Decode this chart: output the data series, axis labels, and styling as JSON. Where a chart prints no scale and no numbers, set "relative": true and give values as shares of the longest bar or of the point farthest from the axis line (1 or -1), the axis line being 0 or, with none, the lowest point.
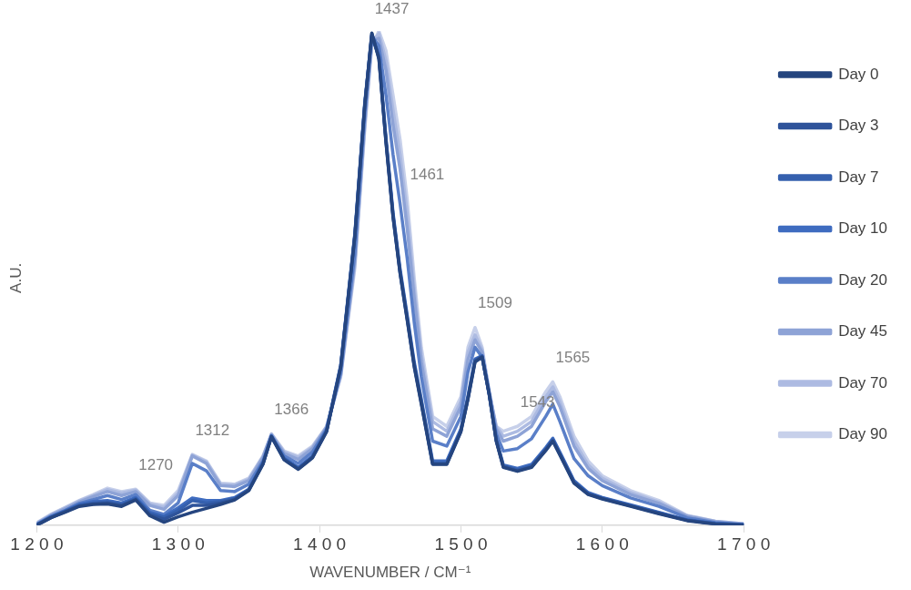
{
  "chart_data": {
    "type": "line",
    "relative": true,
    "xlabel": "WAVENUMBER / CM⁻¹",
    "ylabel": "A.U.",
    "xlim": [
      1200,
      1700
    ],
    "xticks": [
      1200,
      1300,
      1400,
      1500,
      1600,
      1700
    ],
    "grid": false,
    "legend": "right",
    "marker": "none",
    "line_style": "solid",
    "x": [
      1200,
      1210,
      1220,
      1230,
      1240,
      1250,
      1260,
      1270,
      1280,
      1290,
      1300,
      1310,
      1320,
      1330,
      1340,
      1350,
      1360,
      1366,
      1375,
      1385,
      1395,
      1405,
      1415,
      1425,
      1432,
      1437,
      1442,
      1447,
      1452,
      1457,
      1462,
      1467,
      1472,
      1480,
      1490,
      1500,
      1505,
      1510,
      1515,
      1520,
      1525,
      1530,
      1540,
      1550,
      1560,
      1565,
      1570,
      1580,
      1590,
      1600,
      1620,
      1640,
      1660,
      1680,
      1700
    ],
    "series": [
      {
        "name": "Day 0",
        "color": "#25457f",
        "values": [
          0,
          0.015,
          0.026,
          0.038,
          0.042,
          0.043,
          0.038,
          0.051,
          0.019,
          0.006,
          0.017,
          0.026,
          0.034,
          0.042,
          0.051,
          0.07,
          0.123,
          0.179,
          0.132,
          0.113,
          0.136,
          0.189,
          0.32,
          0.585,
          0.849,
          0.996,
          0.943,
          0.774,
          0.623,
          0.509,
          0.415,
          0.32,
          0.245,
          0.123,
          0.123,
          0.189,
          0.255,
          0.33,
          0.34,
          0.264,
          0.17,
          0.117,
          0.109,
          0.117,
          0.151,
          0.17,
          0.142,
          0.085,
          0.062,
          0.053,
          0.038,
          0.023,
          0.009,
          0.002,
          0
        ]
      },
      {
        "name": "Day 3",
        "color": "#2e539a",
        "values": [
          0,
          0.015,
          0.027,
          0.039,
          0.043,
          0.045,
          0.04,
          0.052,
          0.021,
          0.012,
          0.025,
          0.04,
          0.04,
          0.045,
          0.052,
          0.071,
          0.124,
          0.179,
          0.133,
          0.114,
          0.137,
          0.19,
          0.32,
          0.585,
          0.85,
          0.995,
          0.945,
          0.776,
          0.625,
          0.51,
          0.417,
          0.322,
          0.247,
          0.124,
          0.124,
          0.19,
          0.256,
          0.332,
          0.341,
          0.265,
          0.171,
          0.118,
          0.11,
          0.118,
          0.152,
          0.171,
          0.143,
          0.086,
          0.063,
          0.054,
          0.039,
          0.024,
          0.01,
          0.003,
          0
        ]
      },
      {
        "name": "Day 7",
        "color": "#3560ae",
        "values": [
          0.001,
          0.016,
          0.028,
          0.04,
          0.045,
          0.047,
          0.042,
          0.054,
          0.024,
          0.016,
          0.03,
          0.05,
          0.045,
          0.048,
          0.054,
          0.072,
          0.125,
          0.18,
          0.134,
          0.115,
          0.138,
          0.191,
          0.322,
          0.588,
          0.852,
          0.99,
          0.948,
          0.78,
          0.628,
          0.513,
          0.42,
          0.325,
          0.25,
          0.126,
          0.126,
          0.192,
          0.258,
          0.334,
          0.342,
          0.266,
          0.172,
          0.12,
          0.112,
          0.12,
          0.154,
          0.173,
          0.145,
          0.088,
          0.064,
          0.055,
          0.04,
          0.025,
          0.01,
          0.003,
          0.001
        ]
      },
      {
        "name": "Day 10",
        "color": "#3f6cc0",
        "values": [
          0.001,
          0.017,
          0.029,
          0.042,
          0.048,
          0.05,
          0.045,
          0.056,
          0.026,
          0.018,
          0.035,
          0.055,
          0.05,
          0.05,
          0.056,
          0.073,
          0.126,
          0.181,
          0.135,
          0.117,
          0.14,
          0.192,
          0.324,
          0.59,
          0.855,
          0.992,
          0.95,
          0.783,
          0.632,
          0.518,
          0.425,
          0.33,
          0.255,
          0.13,
          0.13,
          0.195,
          0.262,
          0.336,
          0.343,
          0.267,
          0.174,
          0.122,
          0.115,
          0.123,
          0.157,
          0.176,
          0.148,
          0.09,
          0.066,
          0.056,
          0.041,
          0.026,
          0.011,
          0.004,
          0.001
        ]
      },
      {
        "name": "Day 20",
        "color": "#5a7fc8",
        "values": [
          0.002,
          0.018,
          0.03,
          0.044,
          0.052,
          0.06,
          0.052,
          0.062,
          0.03,
          0.022,
          0.045,
          0.125,
          0.11,
          0.07,
          0.068,
          0.083,
          0.13,
          0.18,
          0.14,
          0.125,
          0.148,
          0.195,
          0.31,
          0.55,
          0.83,
          0.99,
          0.97,
          0.87,
          0.75,
          0.65,
          0.54,
          0.41,
          0.3,
          0.17,
          0.16,
          0.22,
          0.31,
          0.36,
          0.34,
          0.265,
          0.185,
          0.15,
          0.155,
          0.175,
          0.22,
          0.245,
          0.21,
          0.135,
          0.1,
          0.08,
          0.055,
          0.038,
          0.015,
          0.005,
          0.001
        ]
      },
      {
        "name": "Day 45",
        "color": "#8ea3d6",
        "values": [
          0.003,
          0.02,
          0.033,
          0.047,
          0.058,
          0.068,
          0.06,
          0.068,
          0.04,
          0.032,
          0.06,
          0.14,
          0.125,
          0.08,
          0.078,
          0.09,
          0.137,
          0.183,
          0.145,
          0.133,
          0.155,
          0.198,
          0.305,
          0.535,
          0.815,
          0.98,
          0.985,
          0.92,
          0.81,
          0.72,
          0.6,
          0.46,
          0.33,
          0.195,
          0.18,
          0.24,
          0.335,
          0.375,
          0.35,
          0.27,
          0.195,
          0.17,
          0.18,
          0.2,
          0.25,
          0.27,
          0.24,
          0.16,
          0.115,
          0.09,
          0.062,
          0.044,
          0.018,
          0.007,
          0.002
        ]
      },
      {
        "name": "Day 70",
        "color": "#adbbe2",
        "values": [
          0.004,
          0.021,
          0.035,
          0.049,
          0.06,
          0.072,
          0.065,
          0.071,
          0.043,
          0.036,
          0.065,
          0.142,
          0.128,
          0.083,
          0.081,
          0.093,
          0.139,
          0.184,
          0.148,
          0.137,
          0.158,
          0.199,
          0.302,
          0.528,
          0.808,
          0.975,
          0.995,
          0.94,
          0.84,
          0.75,
          0.63,
          0.48,
          0.345,
          0.21,
          0.19,
          0.25,
          0.35,
          0.385,
          0.355,
          0.27,
          0.2,
          0.18,
          0.19,
          0.21,
          0.26,
          0.28,
          0.25,
          0.17,
          0.122,
          0.095,
          0.066,
          0.047,
          0.019,
          0.008,
          0.003
        ]
      },
      {
        "name": "Day 90",
        "color": "#c7d0ea",
        "values": [
          0.005,
          0.022,
          0.036,
          0.05,
          0.062,
          0.075,
          0.068,
          0.073,
          0.045,
          0.04,
          0.07,
          0.143,
          0.13,
          0.085,
          0.083,
          0.095,
          0.14,
          0.185,
          0.15,
          0.14,
          0.16,
          0.2,
          0.3,
          0.52,
          0.8,
          0.97,
          1,
          0.96,
          0.87,
          0.78,
          0.66,
          0.5,
          0.36,
          0.22,
          0.2,
          0.26,
          0.36,
          0.4,
          0.36,
          0.27,
          0.2,
          0.19,
          0.2,
          0.22,
          0.27,
          0.29,
          0.26,
          0.18,
          0.13,
          0.1,
          0.07,
          0.05,
          0.02,
          0.008,
          0.003
        ]
      }
    ],
    "annotations": [
      {
        "text": "1270",
        "x": 1270,
        "y": 0.073
      },
      {
        "text": "1312",
        "x": 1310,
        "y": 0.143
      },
      {
        "text": "1366",
        "x": 1366,
        "y": 0.185
      },
      {
        "text": "1437",
        "x": 1437,
        "y": 0.996
      },
      {
        "text": "1461",
        "x": 1462,
        "y": 0.66
      },
      {
        "text": "1509",
        "x": 1510,
        "y": 0.4
      },
      {
        "text": "1543",
        "x": 1540,
        "y": 0.2
      },
      {
        "text": "1565",
        "x": 1565,
        "y": 0.29
      }
    ]
  }
}
